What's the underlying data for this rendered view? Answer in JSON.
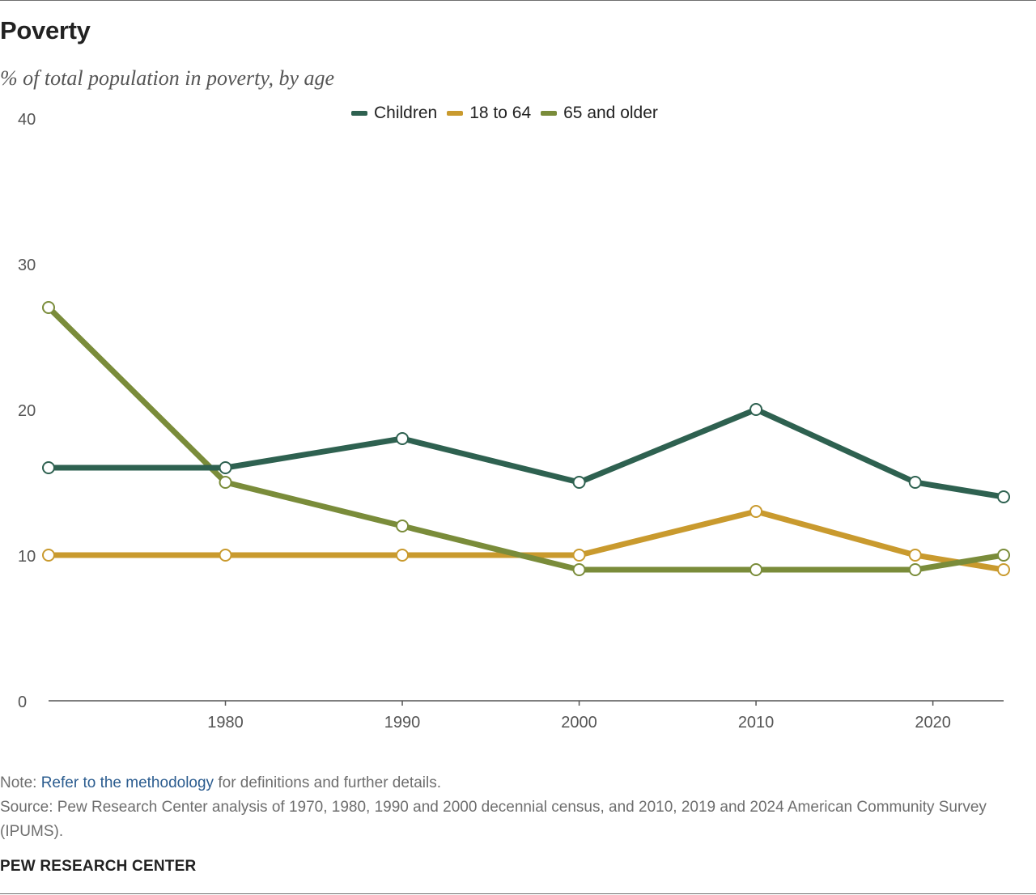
{
  "title": "Poverty",
  "subtitle": "% of total population in poverty, by age",
  "note": {
    "prefix": "Note:",
    "link_text": "Refer to the methodology",
    "suffix": "for definitions and further details."
  },
  "source": "Source: Pew Research Center analysis of 1970, 1980, 1990 and 2000 decennial census, and 2010, 2019 and 2024 American Community Survey (IPUMS).",
  "brand": "PEW RESEARCH CENTER",
  "colors": {
    "children": "#2e6150",
    "age_18_64": "#c99a2e",
    "age_65_plus": "#7a8c3a",
    "axis": "#555555",
    "link": "#2b5c8f"
  },
  "chart_data": {
    "type": "line",
    "title": "Poverty",
    "subtitle": "% of total population in poverty, by age",
    "xlabel": "",
    "ylabel": "",
    "x": [
      1970,
      1980,
      1990,
      2000,
      2010,
      2019,
      2024
    ],
    "xticks": [
      1980,
      1990,
      2000,
      2010,
      2020
    ],
    "yticks": [
      0,
      10,
      20,
      30,
      40
    ],
    "xlim": [
      1970,
      2024
    ],
    "ylim": [
      0,
      40
    ],
    "grid": false,
    "legend_position": "top-center",
    "series": [
      {
        "name": "Children",
        "color_key": "children",
        "values": [
          16,
          16,
          18,
          15,
          20,
          15,
          14
        ]
      },
      {
        "name": "18 to 64",
        "color_key": "age_18_64",
        "values": [
          10,
          10,
          10,
          10,
          13,
          10,
          9
        ]
      },
      {
        "name": "65 and older",
        "color_key": "age_65_plus",
        "values": [
          27,
          15,
          12,
          9,
          9,
          9,
          10
        ]
      }
    ]
  }
}
